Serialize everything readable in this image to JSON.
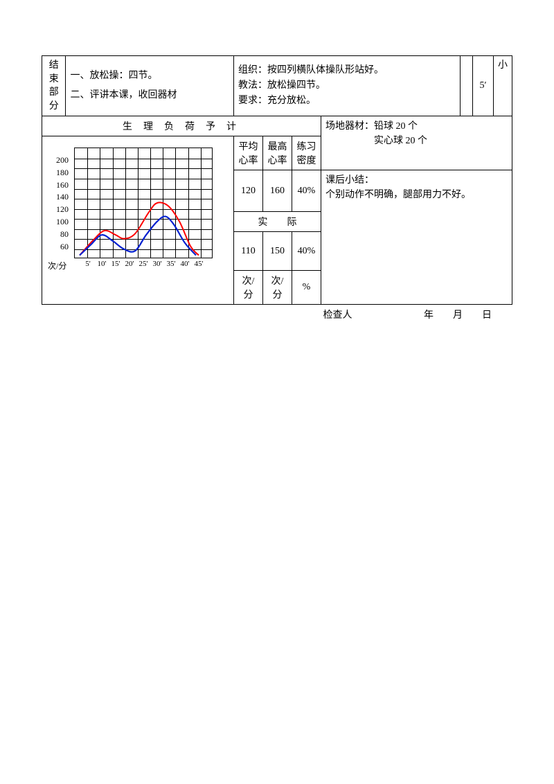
{
  "top": {
    "section_label": "结束部分",
    "col1_line1": "一、放松操：四节。",
    "col1_line2": "二、评讲本课，收回器材",
    "col2_line1": "组织：按四列横队体操队形站好。",
    "col2_line2": "教法：放松操四节。",
    "col2_line3": "要求：充分放松。",
    "time": "5′",
    "intensity": "小"
  },
  "phys": {
    "title": "生理负荷予计",
    "headers": {
      "avg": "平均心率",
      "max": "最高心率",
      "density": "练习密度"
    },
    "predicted": {
      "avg": "120",
      "max": "160",
      "density": "40%"
    },
    "actual_label": "实　　际",
    "actual": {
      "avg": "110",
      "max": "150",
      "density": "40%"
    },
    "units": {
      "avg": "次/分",
      "max": "次/分",
      "density": "%"
    }
  },
  "equipment": {
    "label": "场地器材：",
    "line1": "铅球 20 个",
    "line2": "实心球 20 个"
  },
  "summary": {
    "label": "课后小结：",
    "text": "个别动作不明确，腿部用力不好。"
  },
  "footer": {
    "inspector": "检查人",
    "date": "年　　月　　日"
  },
  "chart": {
    "type": "line",
    "y_unit": "次/分",
    "y_ticks": [
      60,
      80,
      100,
      120,
      140,
      160,
      180,
      200
    ],
    "x_ticks": [
      "5'",
      "10'",
      "15'",
      "20'",
      "25'",
      "30'",
      "35'",
      "40'",
      "45'"
    ],
    "ylim": [
      40,
      220
    ],
    "xlim": [
      0,
      50
    ],
    "grid_rows": 11,
    "grid_cols": 11,
    "background_color": "#ffffff",
    "grid_color": "#000000",
    "series": [
      {
        "name": "red",
        "color": "#ff0000",
        "stroke_width": 2,
        "points": [
          [
            2,
            45
          ],
          [
            7,
            70
          ],
          [
            11,
            85
          ],
          [
            15,
            78
          ],
          [
            18,
            72
          ],
          [
            22,
            80
          ],
          [
            27,
            115
          ],
          [
            30,
            130
          ],
          [
            34,
            125
          ],
          [
            38,
            100
          ],
          [
            42,
            60
          ],
          [
            45,
            45
          ]
        ]
      },
      {
        "name": "blue",
        "color": "#0020d0",
        "stroke_width": 2.2,
        "points": [
          [
            2,
            45
          ],
          [
            6,
            62
          ],
          [
            10,
            78
          ],
          [
            14,
            68
          ],
          [
            18,
            55
          ],
          [
            22,
            52
          ],
          [
            26,
            78
          ],
          [
            30,
            100
          ],
          [
            33,
            108
          ],
          [
            36,
            95
          ],
          [
            40,
            65
          ],
          [
            44,
            45
          ]
        ]
      }
    ]
  }
}
